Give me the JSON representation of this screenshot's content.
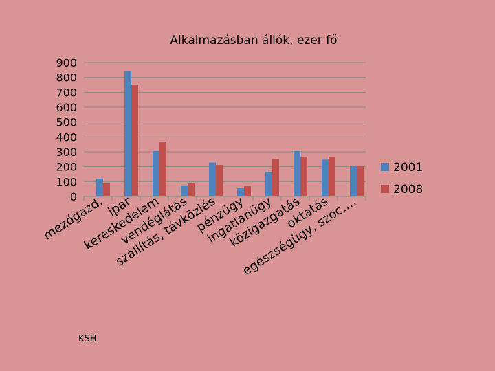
{
  "footer": "KSH",
  "chart_data": {
    "type": "bar",
    "title": "Alkalmazásban állók, ezer fő",
    "xlabel": "",
    "ylabel": "",
    "ylim": [
      0,
      900
    ],
    "yticks": [
      0,
      100,
      200,
      300,
      400,
      500,
      600,
      700,
      800,
      900
    ],
    "grid": true,
    "legend_position": "right",
    "categories": [
      "mezőgazd.",
      "ipar",
      "kereskedelem",
      "vendéglátás",
      "szállítás, távközlés",
      "pénzügy",
      "ingatlanügy",
      "közigazgatás",
      "oktatás",
      "egészségügy, szoc.…"
    ],
    "series": [
      {
        "name": "2001",
        "color": "#4f81bd",
        "values": [
          120,
          840,
          305,
          75,
          228,
          55,
          165,
          305,
          248,
          208
        ]
      },
      {
        "name": "2008",
        "color": "#c0504d",
        "values": [
          88,
          752,
          368,
          88,
          212,
          72,
          252,
          268,
          268,
          202
        ]
      }
    ]
  }
}
